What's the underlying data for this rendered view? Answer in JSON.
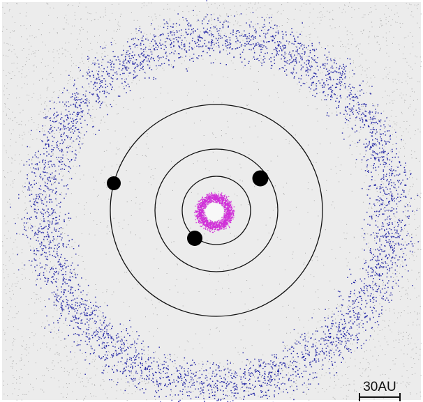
{
  "scale_bar": {
    "label": "30AU"
  }
}
